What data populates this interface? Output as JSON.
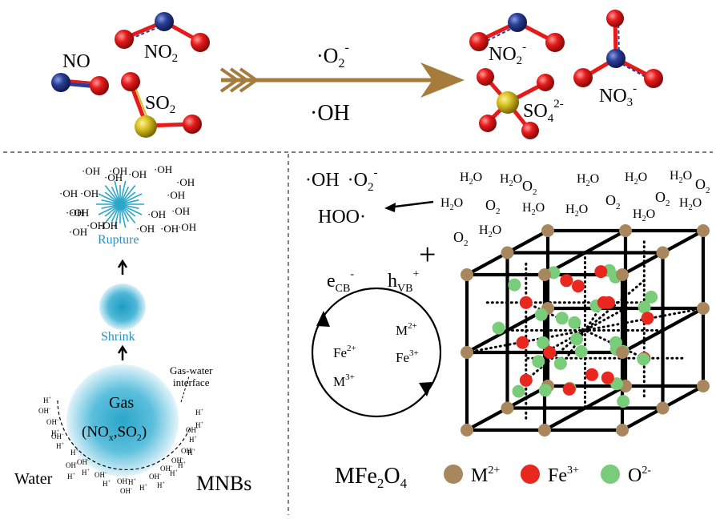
{
  "top": {
    "reactants": {
      "no": "NO",
      "no2_base": "NO",
      "no2_sub": "2",
      "so2_base": "SO",
      "so2_sub": "2"
    },
    "arrow": {
      "superoxide_pre": "·O",
      "superoxide_sub": "2",
      "superoxide_sup": "-",
      "hydroxyl": "·OH"
    },
    "products": {
      "no2_base": "NO",
      "no2_sub": "2",
      "no2_sup": "-",
      "so4_base": "SO",
      "so4_sub": "4",
      "so4_sup": "2-",
      "no3_base": "NO",
      "no3_sub": "3",
      "no3_sup": "-"
    }
  },
  "left_panel": {
    "oh_label": "·OH",
    "rupture": "Rupture",
    "shrink": "Shrink",
    "gas": "Gas",
    "gas_formula": {
      "open": "(NO",
      "x": "x",
      "mid": ",SO",
      "two": "2",
      "close": ")"
    },
    "interface_line1": "Gas-water",
    "interface_line2": "interface",
    "water": "Water",
    "mnbs": "MNBs",
    "ion_oh": "OH",
    "ion_h": "H",
    "ion_h_sup": "+",
    "ion_oh_sup": "-"
  },
  "right_panel": {
    "radicals_oh": "·OH",
    "radicals_o2_pre": "·O",
    "radicals_o2_sub": "2",
    "radicals_o2_sup": "-",
    "hoo": "HOO·",
    "h2o": {
      "h": "H",
      "sub": "2",
      "o": "O"
    },
    "o2": {
      "o": "O",
      "sub": "2"
    },
    "plus": "+",
    "ecb": {
      "e": "e",
      "sub": "CB",
      "sup": "-"
    },
    "hvb": {
      "h": "h",
      "sub": "VB",
      "sup": "+"
    },
    "cycle": {
      "m2": "M",
      "m2_sup": "2+",
      "fe2": "Fe",
      "fe2_sup": "2+",
      "fe3": "Fe",
      "fe3_sup": "3+",
      "m3": "M",
      "m3_sup": "3+"
    },
    "formula": {
      "m": "MFe",
      "sub2": "2",
      "o": "O",
      "sub4": "4"
    },
    "legend": [
      {
        "label": "M",
        "sup": "2+",
        "color": "#A8875E"
      },
      {
        "label": "Fe",
        "sup": "3+",
        "color": "#E8281E"
      },
      {
        "label": "O",
        "sup": "2-",
        "color": "#79CC79"
      }
    ]
  },
  "colors": {
    "nitrogen": "#2A3E96",
    "oxygen": "#E51A1A",
    "sulfur": "#D6BF22",
    "arrow": "#A57C3C",
    "bubble": "#2AA6C8",
    "label_blue": "#2A8FBF"
  }
}
